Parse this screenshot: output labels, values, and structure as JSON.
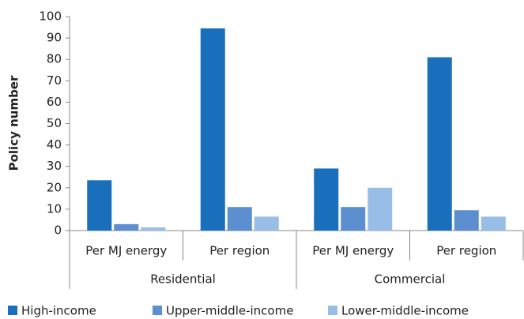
{
  "chart_data": {
    "type": "bar",
    "y_label": "Policy number",
    "categories": [
      "Per MJ energy",
      "Per region",
      "Per MJ energy",
      "Per region"
    ],
    "category_groups": [
      "Residential",
      "Commercial"
    ],
    "series": [
      {
        "name": "High-income",
        "color": "#1a6fbd",
        "values": [
          23.5,
          94.5,
          29,
          81
        ]
      },
      {
        "name": "Upper-middle-income",
        "color": "#5b8fcf",
        "values": [
          3,
          11,
          11,
          9.5
        ]
      },
      {
        "name": "Lower-middle-income",
        "color": "#98bde6",
        "values": [
          1.5,
          6.5,
          20,
          6.5
        ]
      }
    ],
    "ylim": [
      0,
      100
    ],
    "yticks": [
      0,
      10,
      20,
      30,
      40,
      50,
      60,
      70,
      80,
      90,
      100
    ],
    "grid": false
  }
}
